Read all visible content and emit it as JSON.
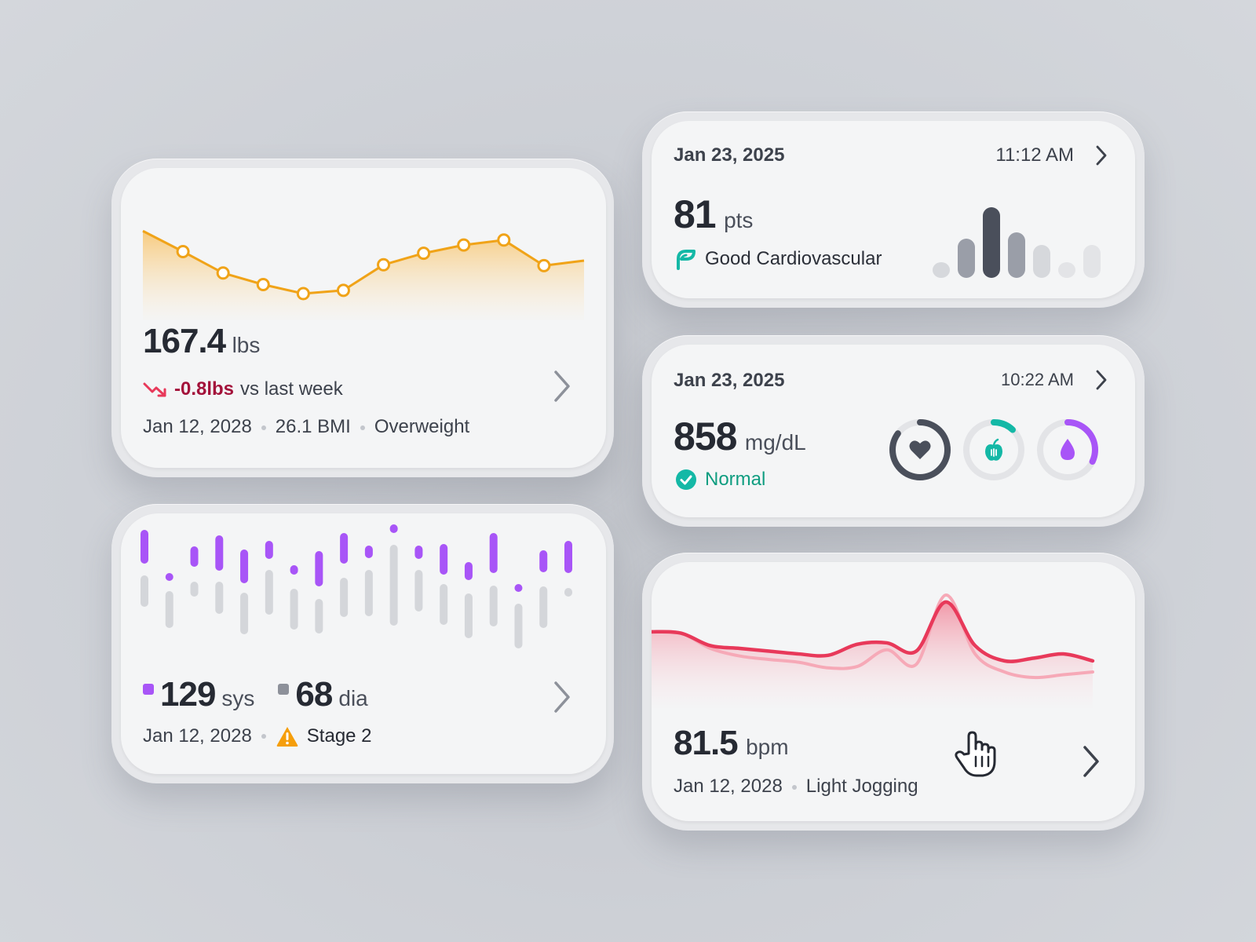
{
  "weight_card": {
    "value": "167.4",
    "unit": "lbs",
    "change": "-0.8lbs",
    "change_suffix": "vs last week",
    "date": "Jan 12, 2028",
    "bmi": "26.1 BMI",
    "status": "Overweight",
    "accent_color": "#f0a318",
    "icons": {
      "trend": "trend-down-icon",
      "next": "chevron-right-icon"
    }
  },
  "cardio_card": {
    "date": "Jan 23, 2025",
    "time": "11:12 AM",
    "value": "81",
    "unit": "pts",
    "status": "Good Cardiovascular",
    "status_color": "#14b8a6",
    "icons": {
      "status": "cardio-leaf-icon",
      "next": "chevron-right-icon"
    }
  },
  "glucose_card": {
    "date": "Jan 23, 2025",
    "time": "10:22 AM",
    "value": "858",
    "unit": "mg/dL",
    "status": "Normal",
    "status_color": "#0f9d80",
    "rings": [
      {
        "name": "heart",
        "icon": "heart-icon",
        "progress": 0.85,
        "color": "#4a4f5b"
      },
      {
        "name": "nutrition",
        "icon": "apple-icon",
        "progress": 0.12,
        "color": "#14b8a6"
      },
      {
        "name": "hydration",
        "icon": "drop-icon",
        "progress": 0.32,
        "color": "#a855f7"
      }
    ],
    "icons": {
      "status": "check-circle-icon",
      "next": "chevron-right-icon"
    }
  },
  "bp_card": {
    "sys_value": "129",
    "sys_unit": "sys",
    "dia_value": "68",
    "dia_unit": "dia",
    "date": "Jan 12, 2028",
    "status": "Stage 2",
    "sys_color": "#a855f7",
    "dia_color": "#d4d6da",
    "icons": {
      "status": "warning-icon",
      "next": "chevron-right-icon"
    }
  },
  "hr_card": {
    "value": "81.5",
    "unit": "bpm",
    "date": "Jan 12, 2028",
    "activity": "Light Jogging",
    "line_color": "#e8395a",
    "icons": {
      "cursor": "hand-pointer-icon",
      "next": "chevron-right-icon"
    }
  },
  "chart_data": [
    {
      "type": "area",
      "name": "weight-trend",
      "x": [
        0,
        1,
        2,
        3,
        4,
        5,
        6,
        7,
        8,
        9,
        10,
        11
      ],
      "y": [
        75,
        50,
        24,
        10,
        -1,
        3,
        34,
        48,
        58,
        64,
        33,
        39
      ],
      "markers": [
        false,
        true,
        true,
        true,
        true,
        true,
        true,
        true,
        true,
        true,
        true,
        false
      ],
      "ylim": [
        -20,
        100
      ]
    },
    {
      "type": "bar",
      "name": "cardio-score-bars",
      "values": [
        10,
        50,
        90,
        58,
        42,
        10,
        42
      ],
      "colors": [
        "#d6d8dc",
        "#9a9ea8",
        "#4a4f5b",
        "#9a9ea8",
        "#d6d8dc",
        "#e3e4e7",
        "#e3e4e7"
      ]
    },
    {
      "type": "bar",
      "name": "blood-pressure-ranges",
      "sys": [
        [
          686,
          719
        ],
        [
          741,
          741
        ],
        [
          707,
          723
        ],
        [
          693,
          728
        ],
        [
          711,
          744
        ],
        [
          700,
          713
        ],
        [
          731,
          733
        ],
        [
          713,
          748
        ],
        [
          690,
          719
        ],
        [
          706,
          712
        ],
        [
          679,
          680
        ],
        [
          706,
          713
        ],
        [
          704,
          733
        ],
        [
          727,
          740
        ],
        [
          690,
          731
        ],
        [
          755,
          755
        ],
        [
          712,
          730
        ],
        [
          700,
          731
        ]
      ],
      "dia": [
        [
          744,
          774
        ],
        [
          764,
          801
        ],
        [
          752,
          761
        ],
        [
          752,
          783
        ],
        [
          766,
          809
        ],
        [
          737,
          784
        ],
        [
          761,
          803
        ],
        [
          774,
          808
        ],
        [
          747,
          787
        ],
        [
          737,
          786
        ],
        [
          705,
          798
        ],
        [
          737,
          780
        ],
        [
          755,
          797
        ],
        [
          767,
          814
        ],
        [
          757,
          799
        ],
        [
          780,
          827
        ],
        [
          758,
          801
        ],
        [
          760,
          761
        ]
      ],
      "ylim": [
        840,
        660
      ]
    },
    {
      "type": "line",
      "name": "heart-rate",
      "series": [
        {
          "values": [
            92,
            90,
            72,
            68,
            64,
            60,
            58,
            74,
            76,
            64,
            135,
            72,
            50,
            54,
            60,
            50
          ]
        },
        {
          "values": [
            92,
            90,
            68,
            57,
            52,
            48,
            40,
            42,
            66,
            45,
            145,
            60,
            34,
            26,
            30,
            34
          ]
        }
      ],
      "ylim": [
        0,
        170
      ]
    }
  ]
}
